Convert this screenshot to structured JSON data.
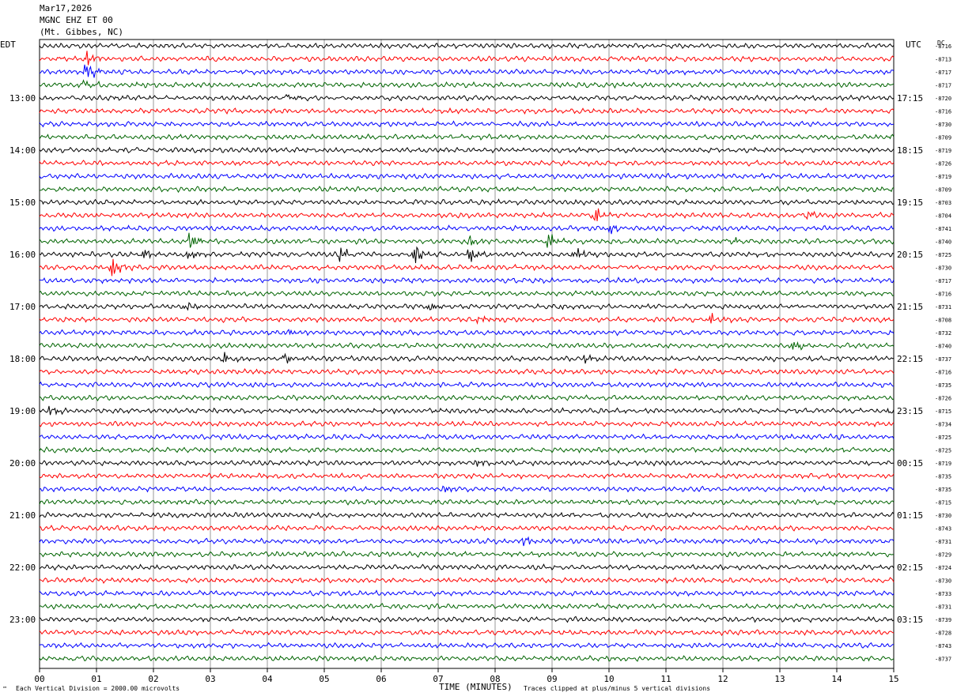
{
  "header": {
    "date": "Mar17,2026",
    "channel": "MGNC EHZ ET 00",
    "location": "(Mt. Gibbes, NC)"
  },
  "left_timezone": "EDT",
  "right_timezone": "UTC",
  "dc_label": "DC",
  "footer": {
    "scale_note": "Each Vertical Division = 2000.00 microvolts",
    "clip_note": "Traces clipped at plus/minus 5 vertical divisions",
    "x_title": "TIME (MINUTES)",
    "mark": "™"
  },
  "colors": {
    "trace_cycle": [
      "#000000",
      "#ff0000",
      "#0000ff",
      "#006400"
    ],
    "grid": "#9a9a9a"
  },
  "chart_data": {
    "type": "line",
    "xlabel": "TIME (MINUTES)",
    "xlim": [
      0,
      15
    ],
    "x_ticks": [
      "00",
      "01",
      "02",
      "03",
      "04",
      "05",
      "06",
      "07",
      "08",
      "09",
      "10",
      "11",
      "12",
      "13",
      "14",
      "15"
    ],
    "left_hour_labels": [
      "13:00",
      "14:00",
      "15:00",
      "16:00",
      "17:00",
      "18:00",
      "19:00",
      "20:00",
      "21:00",
      "22:00",
      "23:00"
    ],
    "right_hour_labels": [
      "17:15",
      "18:15",
      "19:15",
      "20:15",
      "21:15",
      "22:15",
      "23:15",
      "00:15",
      "01:15",
      "02:15",
      "03:15"
    ],
    "dc_offsets": [
      -8716,
      -8713,
      -8717,
      -8717,
      -8720,
      -8716,
      -8730,
      -8709,
      -8719,
      -8726,
      -8719,
      -8709,
      -8703,
      -8704,
      -8741,
      -8740,
      -8725,
      -8730,
      -8717,
      -8716,
      -8731,
      -8708,
      -8732,
      -8740,
      -8737,
      -8716,
      -8735,
      -8726,
      -8715,
      -8734,
      -8725,
      -8725,
      -8719,
      -8735,
      -8735,
      -8715,
      -8730,
      -8743,
      -8731,
      -8729,
      -8724,
      -8730,
      -8733,
      -8731,
      -8739,
      -8728,
      -8743,
      -8737
    ],
    "events": [
      {
        "trace": 1,
        "minute": 0.85,
        "amp": 2.2
      },
      {
        "trace": 2,
        "minute": 0.82,
        "amp": 3.5
      },
      {
        "trace": 3,
        "minute": 0.8,
        "amp": 1.4
      },
      {
        "trace": 4,
        "minute": 4.35,
        "amp": 1.4
      },
      {
        "trace": 13,
        "minute": 9.75,
        "amp": 2.4
      },
      {
        "trace": 13,
        "minute": 13.5,
        "amp": 1.4
      },
      {
        "trace": 14,
        "minute": 10.0,
        "amp": 2.0
      },
      {
        "trace": 15,
        "minute": 2.65,
        "amp": 2.2
      },
      {
        "trace": 15,
        "minute": 7.55,
        "amp": 2.0
      },
      {
        "trace": 15,
        "minute": 8.95,
        "amp": 2.4
      },
      {
        "trace": 15,
        "minute": 12.1,
        "amp": 1.5
      },
      {
        "trace": 16,
        "minute": 1.8,
        "amp": 2.2
      },
      {
        "trace": 16,
        "minute": 2.6,
        "amp": 2.0
      },
      {
        "trace": 16,
        "minute": 5.3,
        "amp": 1.8
      },
      {
        "trace": 16,
        "minute": 6.6,
        "amp": 2.6
      },
      {
        "trace": 16,
        "minute": 7.55,
        "amp": 2.6
      },
      {
        "trace": 16,
        "minute": 9.4,
        "amp": 2.2
      },
      {
        "trace": 17,
        "minute": 1.25,
        "amp": 3.8
      },
      {
        "trace": 20,
        "minute": 2.55,
        "amp": 1.8
      },
      {
        "trace": 20,
        "minute": 6.85,
        "amp": 1.4
      },
      {
        "trace": 20,
        "minute": 9.1,
        "amp": 1.4
      },
      {
        "trace": 21,
        "minute": 7.65,
        "amp": 2.2
      },
      {
        "trace": 21,
        "minute": 11.8,
        "amp": 1.4
      },
      {
        "trace": 22,
        "minute": 4.4,
        "amp": 1.4
      },
      {
        "trace": 23,
        "minute": 13.25,
        "amp": 1.8
      },
      {
        "trace": 24,
        "minute": 3.25,
        "amp": 1.8
      },
      {
        "trace": 24,
        "minute": 4.3,
        "amp": 1.4
      },
      {
        "trace": 24,
        "minute": 9.6,
        "amp": 1.4
      },
      {
        "trace": 28,
        "minute": 0.2,
        "amp": 1.4
      },
      {
        "trace": 28,
        "minute": 14.9,
        "amp": 1.2
      },
      {
        "trace": 32,
        "minute": 7.65,
        "amp": 1.2
      },
      {
        "trace": 34,
        "minute": 7.1,
        "amp": 1.0
      },
      {
        "trace": 38,
        "minute": 8.5,
        "amp": 1.2
      }
    ]
  }
}
